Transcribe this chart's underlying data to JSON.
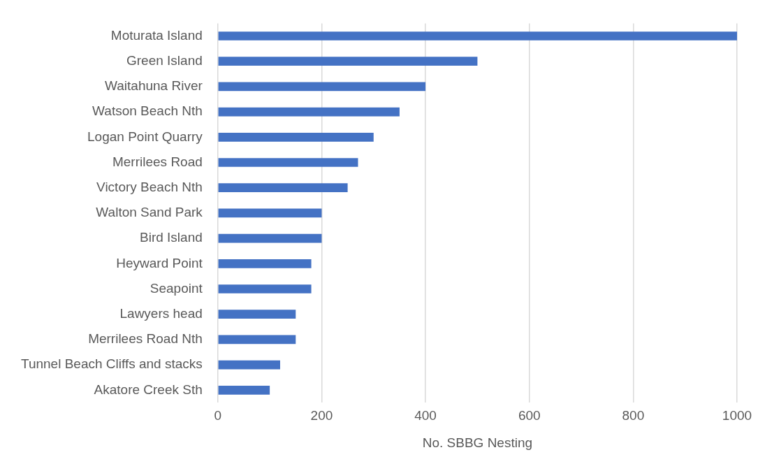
{
  "chart_data": {
    "type": "bar",
    "orientation": "horizontal",
    "xlabel": "No. SBBG Nesting",
    "categories": [
      "Moturata Island",
      "Green Island",
      "Waitahuna River",
      "Watson Beach Nth",
      "Logan Point Quarry",
      "Merrilees Road",
      "Victory Beach Nth",
      "Walton Sand Park",
      "Bird Island",
      "Heyward Point",
      "Seapoint",
      "Lawyers head",
      "Merrilees Road Nth",
      "Tunnel Beach Cliffs and stacks",
      "Akatore Creek Sth"
    ],
    "values": [
      1000,
      500,
      400,
      350,
      300,
      270,
      250,
      200,
      200,
      180,
      180,
      150,
      150,
      120,
      100
    ],
    "color": "#4472c4",
    "xlim": [
      0,
      1000
    ],
    "xticks": [
      0,
      200,
      400,
      600,
      800,
      1000
    ],
    "grid": "x",
    "legend": false
  }
}
